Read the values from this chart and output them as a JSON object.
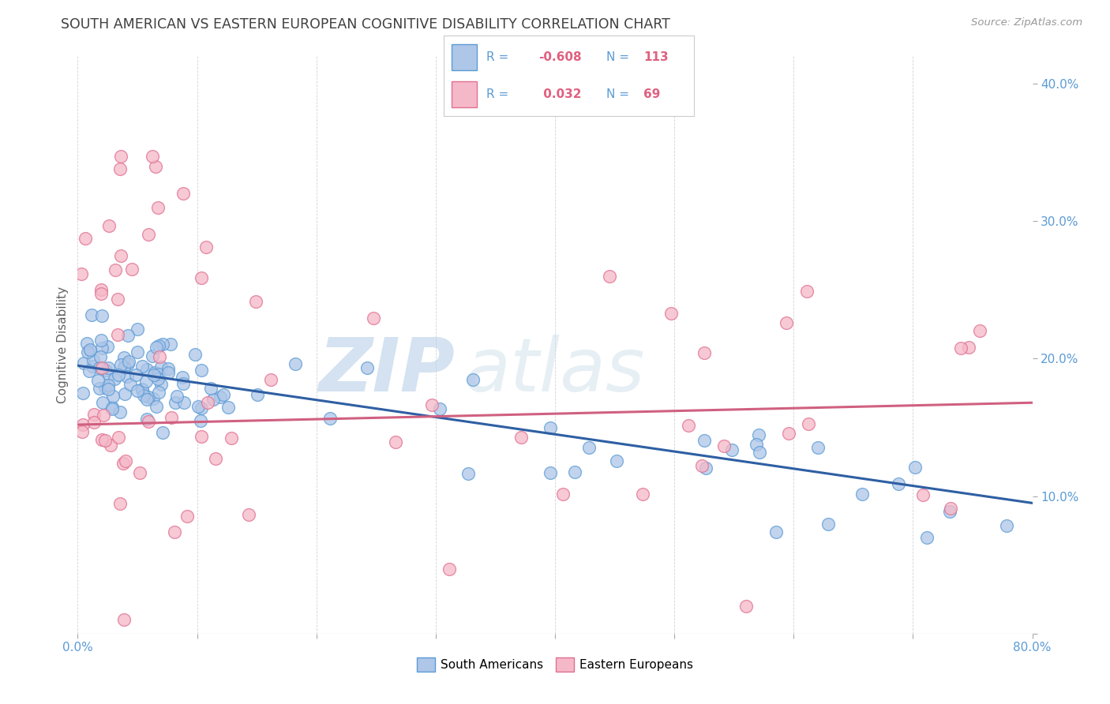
{
  "title": "SOUTH AMERICAN VS EASTERN EUROPEAN COGNITIVE DISABILITY CORRELATION CHART",
  "source": "Source: ZipAtlas.com",
  "ylabel": "Cognitive Disability",
  "xlim": [
    0.0,
    0.8
  ],
  "ylim": [
    0.0,
    0.42
  ],
  "sa_color": "#aec6e8",
  "sa_edge": "#5b9bd5",
  "ee_color": "#f5b8c8",
  "ee_edge": "#e07090",
  "sa_R": -0.608,
  "sa_N": 113,
  "ee_R": 0.032,
  "ee_N": 69,
  "sa_line_color": "#2e5fa3",
  "ee_line_color": "#d06080",
  "legend_label_sa": "South Americans",
  "legend_label_ee": "Eastern Europeans",
  "background_color": "#ffffff",
  "grid_color": "#c8c8c8",
  "title_color": "#404040",
  "tick_label_color": "#5b9bd5",
  "ylabel_color": "#606060"
}
